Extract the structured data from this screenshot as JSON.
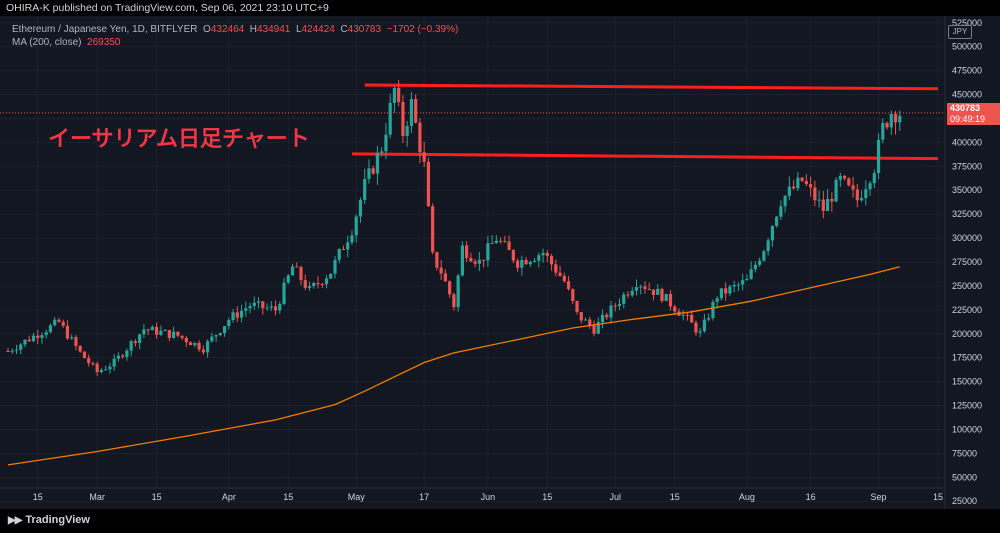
{
  "header": {
    "published_line": "OHIRA-K published on TradingView.com, Sep 06, 2021 23:10 UTC+9"
  },
  "legend": {
    "symbol": "Ethereum / Japanese Yen, 1D, BITFLYER",
    "ohlc": {
      "o_label": "O",
      "o": "432464",
      "h_label": "H",
      "h": "434941",
      "l_label": "L",
      "l": "424424",
      "c_label": "C",
      "c": "430783",
      "change": "−1702 (−0.39%)"
    },
    "ma_label": "MA (200, close)",
    "ma_value": "269350"
  },
  "annotation": "イーサリアム日足チャート",
  "currency_badge": "JPY",
  "last_price_label": "430783",
  "countdown_label": "09:49:19",
  "footer_logo": "TradingView",
  "colors": {
    "background": "#131722",
    "up": "#26a69a",
    "down": "#ef5350",
    "ma": "#f57c00",
    "resistance": "#ff1e1e",
    "text": "#d1d4dc"
  },
  "chart_data": {
    "type": "candlestick",
    "x_ticks": [
      "15",
      "Mar",
      "15",
      "Apr",
      "15",
      "May",
      "17",
      "Jun",
      "15",
      "Jul",
      "15",
      "Aug",
      "16",
      "Sep",
      "15"
    ],
    "y_ticks": [
      "525000",
      "500000",
      "475000",
      "450000",
      "425000",
      "400000",
      "375000",
      "350000",
      "325000",
      "300000",
      "275000",
      "250000",
      "225000",
      "200000",
      "175000",
      "150000",
      "125000",
      "100000",
      "75000",
      "50000",
      "25000"
    ],
    "ylim": [
      20000,
      530000
    ],
    "x_range": [
      "2021-02-08",
      "2021-09-15"
    ],
    "horizontal_lines": [
      {
        "from": "2021-05-03",
        "to": "2021-09-15",
        "y_start": 460000,
        "y_end": 456000
      },
      {
        "from": "2021-04-30",
        "to": "2021-09-15",
        "y_start": 388000,
        "y_end": 383000
      }
    ],
    "ma200": [
      {
        "date": "2021-02-08",
        "y": 63000
      },
      {
        "date": "2021-03-01",
        "y": 77000
      },
      {
        "date": "2021-03-22",
        "y": 93000
      },
      {
        "date": "2021-04-12",
        "y": 110000
      },
      {
        "date": "2021-04-26",
        "y": 126000
      },
      {
        "date": "2021-05-03",
        "y": 140000
      },
      {
        "date": "2021-05-10",
        "y": 155000
      },
      {
        "date": "2021-05-17",
        "y": 170000
      },
      {
        "date": "2021-05-24",
        "y": 180000
      },
      {
        "date": "2021-06-07",
        "y": 193000
      },
      {
        "date": "2021-06-21",
        "y": 206000
      },
      {
        "date": "2021-07-05",
        "y": 215000
      },
      {
        "date": "2021-07-19",
        "y": 223000
      },
      {
        "date": "2021-08-02",
        "y": 234000
      },
      {
        "date": "2021-08-16",
        "y": 248000
      },
      {
        "date": "2021-08-30",
        "y": 262000
      },
      {
        "date": "2021-09-06",
        "y": 270000
      }
    ],
    "close_path": [
      {
        "date": "2021-02-08",
        "y": 182000
      },
      {
        "date": "2021-02-15",
        "y": 200000
      },
      {
        "date": "2021-02-20",
        "y": 212000
      },
      {
        "date": "2021-02-25",
        "y": 180000
      },
      {
        "date": "2021-03-01",
        "y": 160000
      },
      {
        "date": "2021-03-05",
        "y": 170000
      },
      {
        "date": "2021-03-12",
        "y": 205000
      },
      {
        "date": "2021-03-20",
        "y": 198000
      },
      {
        "date": "2021-03-26",
        "y": 185000
      },
      {
        "date": "2021-04-01",
        "y": 215000
      },
      {
        "date": "2021-04-06",
        "y": 230000
      },
      {
        "date": "2021-04-12",
        "y": 225000
      },
      {
        "date": "2021-04-16",
        "y": 270000
      },
      {
        "date": "2021-04-20",
        "y": 245000
      },
      {
        "date": "2021-04-25",
        "y": 265000
      },
      {
        "date": "2021-04-30",
        "y": 310000
      },
      {
        "date": "2021-05-03",
        "y": 355000
      },
      {
        "date": "2021-05-07",
        "y": 395000
      },
      {
        "date": "2021-05-10",
        "y": 455000
      },
      {
        "date": "2021-05-12",
        "y": 410000
      },
      {
        "date": "2021-05-14",
        "y": 440000
      },
      {
        "date": "2021-05-17",
        "y": 375000
      },
      {
        "date": "2021-05-19",
        "y": 280000
      },
      {
        "date": "2021-05-21",
        "y": 265000
      },
      {
        "date": "2021-05-24",
        "y": 230000
      },
      {
        "date": "2021-05-26",
        "y": 290000
      },
      {
        "date": "2021-05-30",
        "y": 275000
      },
      {
        "date": "2021-06-03",
        "y": 300000
      },
      {
        "date": "2021-06-08",
        "y": 275000
      },
      {
        "date": "2021-06-14",
        "y": 285000
      },
      {
        "date": "2021-06-19",
        "y": 255000
      },
      {
        "date": "2021-06-22",
        "y": 220000
      },
      {
        "date": "2021-06-26",
        "y": 205000
      },
      {
        "date": "2021-06-30",
        "y": 225000
      },
      {
        "date": "2021-07-06",
        "y": 255000
      },
      {
        "date": "2021-07-12",
        "y": 240000
      },
      {
        "date": "2021-07-18",
        "y": 215000
      },
      {
        "date": "2021-07-21",
        "y": 200000
      },
      {
        "date": "2021-07-25",
        "y": 240000
      },
      {
        "date": "2021-08-01",
        "y": 255000
      },
      {
        "date": "2021-08-05",
        "y": 290000
      },
      {
        "date": "2021-08-09",
        "y": 340000
      },
      {
        "date": "2021-08-14",
        "y": 360000
      },
      {
        "date": "2021-08-19",
        "y": 330000
      },
      {
        "date": "2021-08-23",
        "y": 360000
      },
      {
        "date": "2021-08-27",
        "y": 340000
      },
      {
        "date": "2021-08-31",
        "y": 375000
      },
      {
        "date": "2021-09-02",
        "y": 415000
      },
      {
        "date": "2021-09-04",
        "y": 432000
      },
      {
        "date": "2021-09-06",
        "y": 430783
      }
    ]
  }
}
